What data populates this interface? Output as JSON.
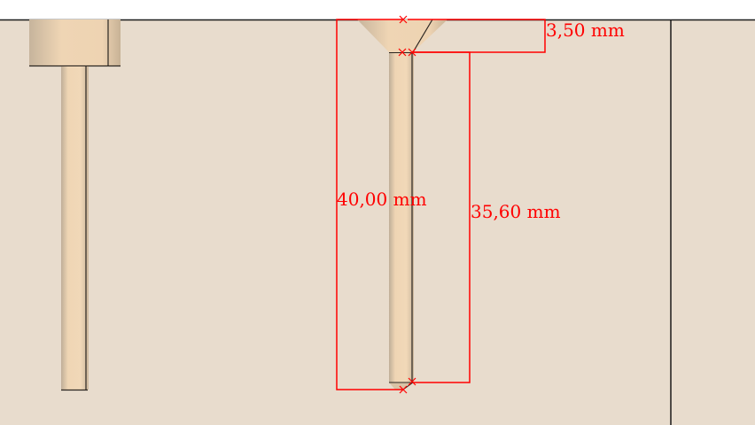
{
  "colors": {
    "background": "#e8dccd",
    "top_strip": "#ffffff",
    "frame_line": "#1a1a1a",
    "part_fill": "#efd5b4",
    "part_shade": "#c9b49a",
    "part_edge": "#2a2520",
    "dimension": "#ff0000"
  },
  "dimensions": {
    "head_height": "3,50 mm",
    "total_length": "40,00 mm",
    "shank_length": "35,60 mm"
  }
}
